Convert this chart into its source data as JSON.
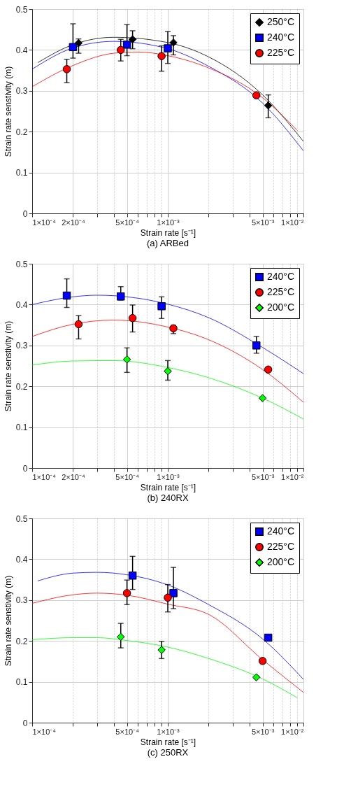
{
  "chart_data": [
    {
      "type": "scatter",
      "title": "(a) ARBed",
      "xlabel": "Strain rate [s⁻¹]",
      "ylabel": "Strain rate senstivity (m)",
      "log": "x",
      "grid": true,
      "legend": "top right",
      "xlim": [
        0.0001,
        0.01
      ],
      "ylim": [
        0,
        0.5
      ],
      "yticks": [
        0,
        0.1,
        0.2,
        0.3,
        0.4,
        0.5
      ],
      "xticks": [
        {
          "value": 0.0001,
          "label": "1×10⁻⁴"
        },
        {
          "value": 0.0002,
          "label": "2×10⁻⁴"
        },
        {
          "value": 0.0003,
          "label": null
        },
        {
          "value": 0.0004,
          "label": null
        },
        {
          "value": 0.0005,
          "label": "5×10⁻⁴"
        },
        {
          "value": 0.0006,
          "label": null
        },
        {
          "value": 0.0007,
          "label": null
        },
        {
          "value": 0.0008,
          "label": null
        },
        {
          "value": 0.0009,
          "label": null
        },
        {
          "value": 0.001,
          "label": "1×10⁻³"
        },
        {
          "value": 0.002,
          "label": null
        },
        {
          "value": 0.003,
          "label": null
        },
        {
          "value": 0.004,
          "label": null
        },
        {
          "value": 0.005,
          "label": "5×10⁻³"
        },
        {
          "value": 0.006,
          "label": null
        },
        {
          "value": 0.007,
          "label": null
        },
        {
          "value": 0.008,
          "label": null
        },
        {
          "value": 0.009,
          "label": null
        },
        {
          "value": 0.01,
          "label": "1×10⁻²"
        }
      ],
      "series": [
        {
          "name": "250°C",
          "type": "scatter",
          "marker": "diamond",
          "color": "#000000",
          "x": [
            0.00022,
            0.00055,
            0.0011,
            0.0055
          ],
          "values": [
            0.417,
            0.426,
            0.418,
            0.264
          ],
          "errors": [
            [
              0.392,
              0.427
            ],
            [
              0.403,
              0.447
            ],
            [
              0.388,
              0.435
            ],
            [
              0.234,
              0.29
            ]
          ]
        },
        {
          "name": "240°C",
          "type": "scatter",
          "marker": "square",
          "color": "#0000ff",
          "x": [
            0.0002,
            0.0005,
            0.001
          ],
          "values": [
            0.407,
            0.413,
            0.404
          ],
          "errors": [
            [
              0.38,
              0.464
            ],
            [
              0.386,
              0.462
            ],
            [
              0.367,
              0.445
            ]
          ]
        },
        {
          "name": "225°C",
          "type": "scatter",
          "marker": "circle",
          "color": "#ff0000",
          "x": [
            0.00018,
            0.00045,
            0.0009,
            0.0045
          ],
          "values": [
            0.353,
            0.4,
            0.385,
            0.289
          ],
          "errors": [
            [
              0.32,
              0.377
            ],
            [
              0.373,
              0.426
            ],
            [
              0.348,
              0.41
            ],
            null
          ]
        },
        {
          "type": "line",
          "color": "#000000",
          "x": [
            0.00011,
            0.0002,
            0.0004,
            0.001,
            0.002,
            0.005,
            0.01
          ],
          "values": [
            0.369,
            0.413,
            0.431,
            0.418,
            0.383,
            0.29,
            0.176
          ]
        },
        {
          "type": "line",
          "color": "#0000ff",
          "x": [
            0.0001,
            0.0002,
            0.0004,
            0.001,
            0.002,
            0.005,
            0.01
          ],
          "values": [
            0.353,
            0.405,
            0.421,
            0.403,
            0.36,
            0.27,
            0.153
          ]
        },
        {
          "type": "line",
          "color": "#ff0000",
          "x": [
            0.0001,
            0.0002,
            0.0004,
            0.0006,
            0.001,
            0.002,
            0.005,
            0.009
          ],
          "values": [
            0.31,
            0.362,
            0.392,
            0.395,
            0.386,
            0.356,
            0.283,
            0.203
          ]
        }
      ]
    },
    {
      "type": "scatter",
      "title": "(b) 240RX",
      "xlabel": "Strain rate [s⁻¹]",
      "ylabel": "Strain rate senstivity (m)",
      "log": "x",
      "grid": true,
      "legend": "top right",
      "xlim": [
        0.0001,
        0.01
      ],
      "ylim": [
        0,
        0.5
      ],
      "yticks": [
        0,
        0.1,
        0.2,
        0.3,
        0.4,
        0.5
      ],
      "xticks": [
        {
          "value": 0.0001,
          "label": "1×10⁻⁴"
        },
        {
          "value": 0.0002,
          "label": "2×10⁻⁴"
        },
        {
          "value": 0.0003,
          "label": null
        },
        {
          "value": 0.0004,
          "label": null
        },
        {
          "value": 0.0005,
          "label": "5×10⁻⁴"
        },
        {
          "value": 0.0006,
          "label": null
        },
        {
          "value": 0.0007,
          "label": null
        },
        {
          "value": 0.0008,
          "label": null
        },
        {
          "value": 0.0009,
          "label": null
        },
        {
          "value": 0.001,
          "label": "1×10⁻³"
        },
        {
          "value": 0.002,
          "label": null
        },
        {
          "value": 0.003,
          "label": null
        },
        {
          "value": 0.004,
          "label": null
        },
        {
          "value": 0.005,
          "label": "5×10⁻³"
        },
        {
          "value": 0.006,
          "label": null
        },
        {
          "value": 0.007,
          "label": null
        },
        {
          "value": 0.008,
          "label": null
        },
        {
          "value": 0.009,
          "label": null
        },
        {
          "value": 0.01,
          "label": "1×10⁻²"
        }
      ],
      "series": [
        {
          "name": "240°C",
          "type": "scatter",
          "marker": "square",
          "color": "#0000ff",
          "x": [
            0.00018,
            0.00045,
            0.0009,
            0.0045
          ],
          "values": [
            0.422,
            0.42,
            0.396,
            0.3
          ],
          "errors": [
            [
              0.393,
              0.463
            ],
            [
              0.411,
              0.444
            ],
            [
              0.366,
              0.419
            ],
            [
              0.281,
              0.322
            ]
          ]
        },
        {
          "name": "225°C",
          "type": "scatter",
          "marker": "circle",
          "color": "#ff0000",
          "x": [
            0.00022,
            0.00055,
            0.0011,
            0.0055
          ],
          "values": [
            0.352,
            0.367,
            0.342,
            0.241
          ],
          "errors": [
            [
              0.316,
              0.373
            ],
            [
              0.333,
              0.399
            ],
            [
              0.329,
              0.349
            ],
            null
          ]
        },
        {
          "name": "200°C",
          "type": "scatter",
          "marker": "diamond",
          "color": "#00ff00",
          "x": [
            0.0005,
            0.001,
            0.005
          ],
          "values": [
            0.266,
            0.237,
            0.171
          ],
          "errors": [
            [
              0.234,
              0.294
            ],
            [
              0.215,
              0.263
            ],
            null
          ]
        },
        {
          "type": "line",
          "color": "#0000ff",
          "x": [
            0.0001,
            0.0002,
            0.0003,
            0.001,
            0.002,
            0.005,
            0.01
          ],
          "values": [
            0.4,
            0.419,
            0.423,
            0.401,
            0.368,
            0.295,
            0.231
          ]
        },
        {
          "type": "line",
          "color": "#ff0000",
          "x": [
            0.0001,
            0.0002,
            0.0004,
            0.001,
            0.002,
            0.005,
            0.01
          ],
          "values": [
            0.322,
            0.352,
            0.362,
            0.345,
            0.314,
            0.241,
            0.161
          ]
        },
        {
          "type": "line",
          "color": "#00ff00",
          "x": [
            0.0001,
            0.0002,
            0.0004,
            0.001,
            0.002,
            0.005,
            0.01
          ],
          "values": [
            0.252,
            0.262,
            0.263,
            0.246,
            0.221,
            0.171,
            0.12
          ]
        }
      ]
    },
    {
      "type": "scatter",
      "title": "(c) 250RX",
      "xlabel": "Strain rate [s⁻¹]",
      "ylabel": "Strain rate senstivity (m)",
      "log": "x",
      "grid": true,
      "legend": "top right",
      "xlim": [
        0.0001,
        0.01
      ],
      "ylim": [
        0,
        0.5
      ],
      "yticks": [
        0,
        0.1,
        0.2,
        0.3,
        0.4,
        0.5
      ],
      "xticks": [
        {
          "value": 0.0001,
          "label": "1×10⁻⁴"
        },
        {
          "value": 0.0002,
          "label": null
        },
        {
          "value": 0.0003,
          "label": null
        },
        {
          "value": 0.0004,
          "label": null
        },
        {
          "value": 0.0005,
          "label": "5×10⁻⁴"
        },
        {
          "value": 0.0006,
          "label": null
        },
        {
          "value": 0.0007,
          "label": null
        },
        {
          "value": 0.0008,
          "label": null
        },
        {
          "value": 0.0009,
          "label": null
        },
        {
          "value": 0.001,
          "label": "1×10⁻³"
        },
        {
          "value": 0.002,
          "label": null
        },
        {
          "value": 0.003,
          "label": null
        },
        {
          "value": 0.004,
          "label": null
        },
        {
          "value": 0.005,
          "label": "5×10⁻³"
        },
        {
          "value": 0.006,
          "label": null
        },
        {
          "value": 0.007,
          "label": null
        },
        {
          "value": 0.008,
          "label": null
        },
        {
          "value": 0.009,
          "label": null
        },
        {
          "value": 0.01,
          "label": "1×10⁻²"
        }
      ],
      "series": [
        {
          "name": "240°C",
          "type": "scatter",
          "marker": "square",
          "color": "#0000ff",
          "x": [
            0.00055,
            0.0011,
            0.0055
          ],
          "values": [
            0.36,
            0.317,
            0.208
          ],
          "errors": [
            [
              0.326,
              0.407
            ],
            [
              0.279,
              0.38
            ],
            null
          ]
        },
        {
          "name": "225°C",
          "type": "scatter",
          "marker": "circle",
          "color": "#ff0000",
          "x": [
            0.0005,
            0.001,
            0.005
          ],
          "values": [
            0.317,
            0.306,
            0.151
          ],
          "errors": [
            [
              0.289,
              0.349
            ],
            [
              0.271,
              0.338
            ],
            null
          ]
        },
        {
          "name": "200°C",
          "type": "scatter",
          "marker": "diamond",
          "color": "#00ff00",
          "x": [
            0.00045,
            0.0009,
            0.0045
          ],
          "values": [
            0.21,
            0.178,
            0.111
          ],
          "errors": [
            [
              0.183,
              0.243
            ],
            [
              0.157,
              0.199
            ],
            null
          ]
        },
        {
          "type": "line",
          "color": "#0000ff",
          "x": [
            0.00011,
            0.0002,
            0.0003,
            0.0005,
            0.001,
            0.002,
            0.005,
            0.01
          ],
          "values": [
            0.347,
            0.366,
            0.368,
            0.362,
            0.337,
            0.289,
            0.205,
            0.106
          ]
        },
        {
          "type": "line",
          "color": "#ff0000",
          "x": [
            0.0001,
            0.0002,
            0.0003,
            0.0005,
            0.001,
            0.002,
            0.005,
            0.01
          ],
          "values": [
            0.292,
            0.313,
            0.317,
            0.312,
            0.29,
            0.265,
            0.154,
            0.074
          ]
        },
        {
          "type": "line",
          "color": "#00ff00",
          "x": [
            0.0001,
            0.0002,
            0.0003,
            0.0005,
            0.001,
            0.002,
            0.005,
            0.009
          ],
          "values": [
            0.203,
            0.208,
            0.208,
            0.201,
            0.185,
            0.157,
            0.107,
            0.061
          ]
        }
      ]
    }
  ]
}
